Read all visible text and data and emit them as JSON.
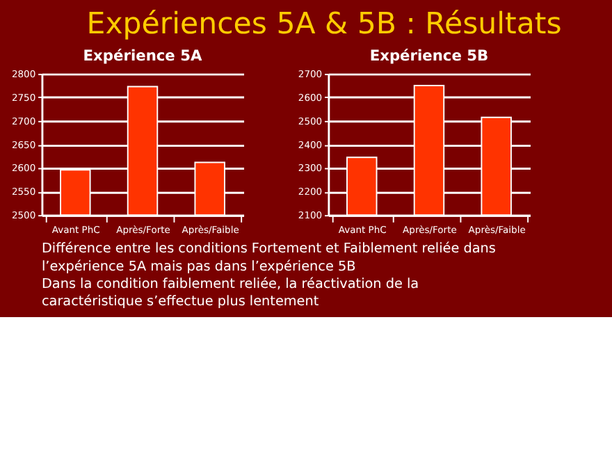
{
  "chart_data": [
    {
      "type": "other",
      "title": "Expériences 5A & 5B : Résultats",
      "annotations": [
        "Différence entre les conditions Fortement et Faiblement reliée dans l’expérience 5A mais pas dans l’expérience 5B",
        "Dans la condition faiblement reliée, la réactivation de la caractéristique s’effectue plus lentement"
      ]
    },
    {
      "type": "bar",
      "title": "Expérience 5A",
      "categories": [
        "Avant PhC",
        "Après/Forte",
        "Après/Faible"
      ],
      "values": [
        2596,
        2773,
        2612
      ],
      "color": "#ff3300",
      "ylim": [
        2500,
        2800
      ],
      "yticks": [
        2500,
        2550,
        2600,
        2650,
        2700,
        2750,
        2800
      ],
      "grid": "y"
    },
    {
      "type": "bar",
      "title": "Expérience 5B",
      "categories": [
        "Avant PhC",
        "Après/Forte",
        "Après/Faible"
      ],
      "values": [
        2345,
        2650,
        2515
      ],
      "color": "#ff3300",
      "ylim": [
        2100,
        2700
      ],
      "yticks": [
        2100,
        2200,
        2300,
        2400,
        2500,
        2600,
        2700
      ],
      "grid": "y"
    }
  ]
}
